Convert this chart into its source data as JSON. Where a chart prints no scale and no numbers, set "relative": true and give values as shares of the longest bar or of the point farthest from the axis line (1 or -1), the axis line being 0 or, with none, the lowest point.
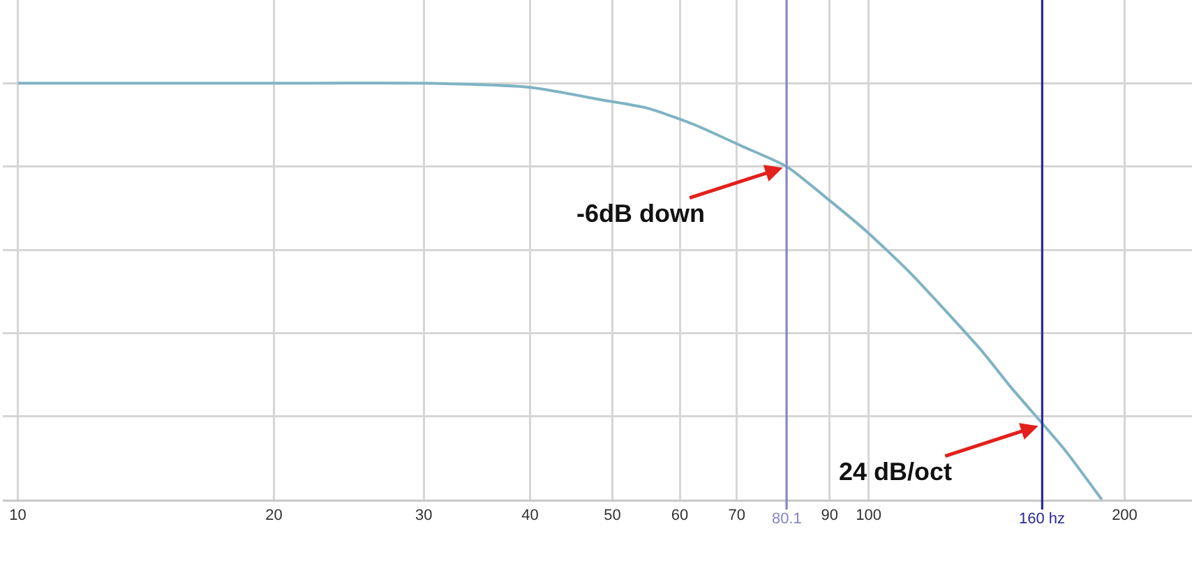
{
  "chart_data": {
    "type": "line",
    "relative": true,
    "x": [
      10,
      20,
      30,
      40,
      48.6,
      55,
      62.5,
      70.8,
      80.1,
      89.8,
      100,
      112.5,
      135.5,
      147,
      170,
      188
    ],
    "values": [
      1.0,
      1.0,
      1.0,
      0.99,
      0.96,
      0.94,
      0.9,
      0.85,
      0.8,
      0.72,
      0.64,
      0.54,
      0.36,
      0.27,
      0.12,
      0.0
    ],
    "color": "#7fb3c3",
    "line_style": "solid",
    "log": "x",
    "xlim": [
      9.6,
      240
    ],
    "xticks": [
      10,
      20,
      30,
      40,
      50,
      60,
      70,
      90,
      100,
      200
    ],
    "grid": true,
    "ref_lines": [
      {
        "axis": "x",
        "value": 80.1,
        "label": "80.1",
        "color": "#8585c8"
      },
      {
        "axis": "x",
        "value": 160,
        "label": "160 hz",
        "color": "#28289a"
      }
    ],
    "annotations": [
      {
        "text": "-6dB down",
        "x": 80.1,
        "y": 0.8
      },
      {
        "text": "24 dB/oct",
        "x": 160,
        "y": 0.18
      }
    ]
  }
}
